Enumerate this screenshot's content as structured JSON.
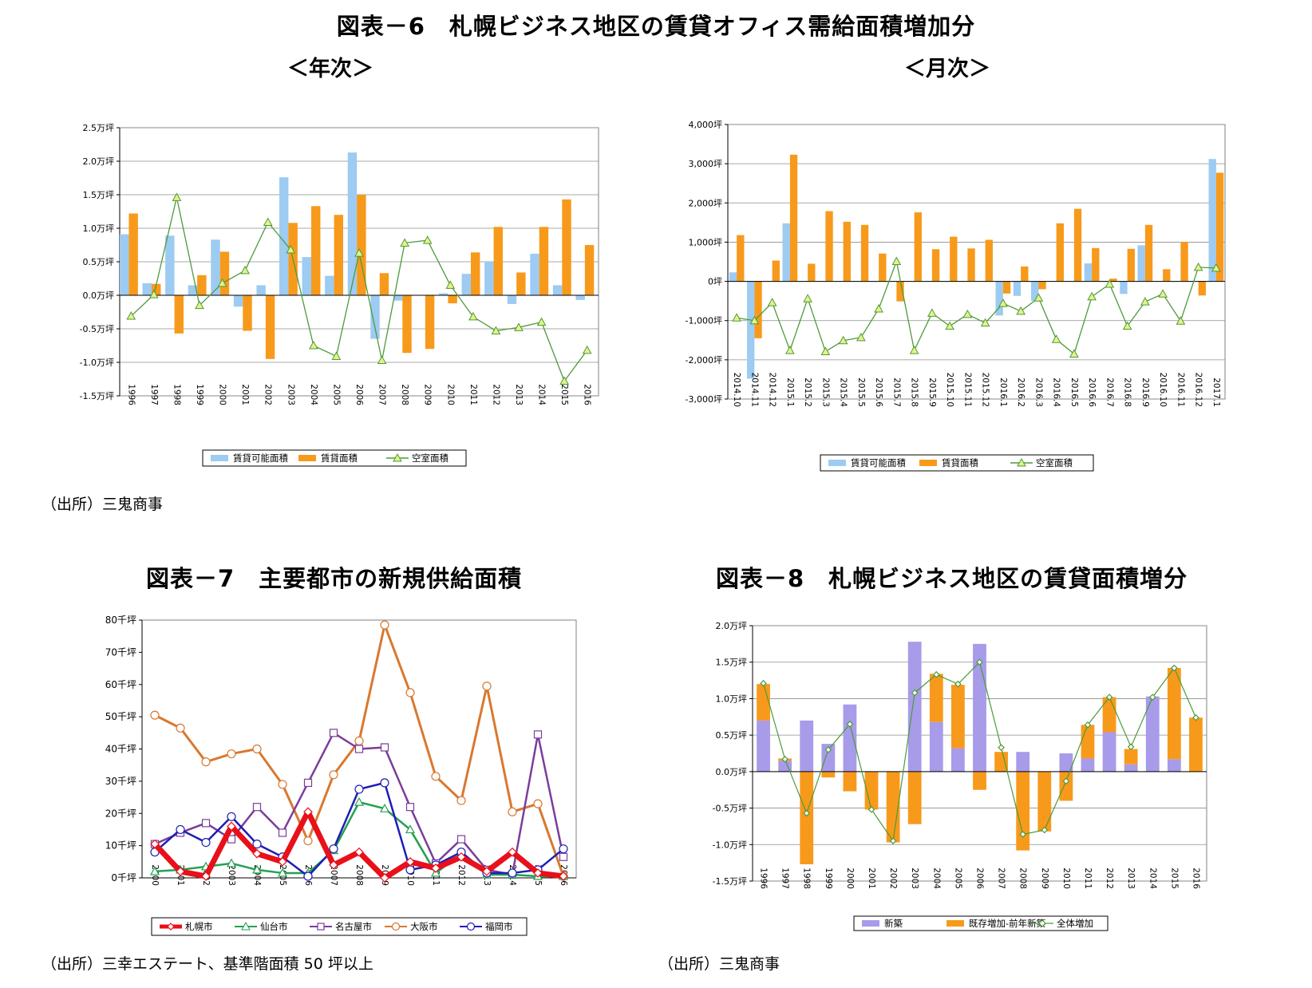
{
  "titles": {
    "fig6": "図表－6　札幌ビジネス地区の賃貸オフィス需給面積増加分",
    "fig6_annual": "＜年次＞",
    "fig6_monthly": "＜月次＞",
    "fig7": "図表－7　主要都市の新規供給面積",
    "fig8": "図表－8　札幌ビジネス地区の賃貸面積増分"
  },
  "sources": {
    "fig6": "（出所）三鬼商事",
    "fig7": "（出所）三幸エステート、基準階面積 50 坪以上",
    "fig8": "（出所）三鬼商事"
  },
  "colors": {
    "light_blue": "#9DCBF1",
    "orange": "#F79A1B",
    "green_line": "#4E9A3A",
    "triangle_fill": "#E4F28A",
    "purple_bar": "#A79BEA",
    "sapporo": "#E8101A",
    "sendai": "#25A052",
    "nagoya": "#7A3D9C",
    "osaka": "#D9782F",
    "fukuoka": "#1E1EB4"
  },
  "chart_data": [
    {
      "id": "annual",
      "type": "bar",
      "categories": [
        "1996",
        "1997",
        "1998",
        "1999",
        "2000",
        "2001",
        "2002",
        "2003",
        "2004",
        "2005",
        "2006",
        "2007",
        "2008",
        "2009",
        "2010",
        "2011",
        "2012",
        "2013",
        "2014",
        "2015",
        "2016"
      ],
      "ylim": [
        -1.5,
        2.5
      ],
      "yticks": [
        2.5,
        2.0,
        1.5,
        1.0,
        0.5,
        0.0,
        -0.5,
        -1.0,
        -1.5
      ],
      "ytick_labels": [
        "2.5万坪",
        "2.0万坪",
        "1.5万坪",
        "1.0万坪",
        "0.5万坪",
        "0.0万坪",
        "-0.5万坪",
        "-1.0万坪",
        "-1.5万坪"
      ],
      "grid": true,
      "legend": "bottom",
      "series": [
        {
          "name": "賃貸可能面積",
          "kind": "bar",
          "values": [
            0.91,
            0.18,
            0.89,
            0.15,
            0.83,
            -0.17,
            0.15,
            1.76,
            0.57,
            0.29,
            2.13,
            -0.65,
            -0.08,
            0.0,
            0.03,
            0.32,
            0.5,
            -0.13,
            0.62,
            0.15,
            -0.07
          ]
        },
        {
          "name": "賃貸面積",
          "kind": "bar",
          "values": [
            1.22,
            0.17,
            -0.57,
            0.3,
            0.65,
            -0.53,
            -0.95,
            1.08,
            1.33,
            1.2,
            1.5,
            0.33,
            -0.86,
            -0.8,
            -0.12,
            0.64,
            1.02,
            0.34,
            1.02,
            1.43,
            0.75
          ]
        },
        {
          "name": "空室面積",
          "kind": "line",
          "values": [
            -0.31,
            0.01,
            1.46,
            -0.15,
            0.18,
            0.37,
            1.09,
            0.68,
            -0.75,
            -0.91,
            0.63,
            -0.97,
            0.78,
            0.82,
            0.15,
            -0.32,
            -0.53,
            -0.48,
            -0.4,
            -1.28,
            -0.82
          ]
        }
      ]
    },
    {
      "id": "monthly",
      "type": "bar",
      "categories": [
        "2014.10",
        "2014.11",
        "2014.12",
        "2015.1",
        "2015.2",
        "2015.3",
        "2015.4",
        "2015.5",
        "2015.6",
        "2015.7",
        "2015.8",
        "2015.9",
        "2015.10",
        "2015.11",
        "2015.12",
        "2016.1",
        "2016.2",
        "2016.3",
        "2016.4",
        "2016.5",
        "2016.6",
        "2016.7",
        "2016.8",
        "2016.9",
        "2016.10",
        "2016.11",
        "2016.12",
        "2017.1"
      ],
      "ylim": [
        -3000,
        4000
      ],
      "yticks": [
        4000,
        3000,
        2000,
        1000,
        0,
        -1000,
        -2000,
        -3000
      ],
      "ytick_labels": [
        "4,000坪",
        "3,000坪",
        "2,000坪",
        "1,000坪",
        "0坪",
        "-1,000坪",
        "-2,000坪",
        "-3,000坪"
      ],
      "grid": true,
      "legend": "bottom",
      "series": [
        {
          "name": "賃貸可能面積",
          "kind": "bar",
          "values": [
            230,
            -2480,
            0,
            1480,
            0,
            0,
            0,
            0,
            0,
            0,
            0,
            0,
            0,
            0,
            0,
            -870,
            -370,
            -500,
            0,
            0,
            460,
            0,
            -320,
            920,
            0,
            0,
            0,
            3120
          ]
        },
        {
          "name": "賃貸面積",
          "kind": "bar",
          "values": [
            1180,
            -1450,
            530,
            3230,
            450,
            1790,
            1520,
            1440,
            710,
            -510,
            1760,
            820,
            1140,
            840,
            1060,
            -310,
            380,
            -200,
            1480,
            1850,
            850,
            70,
            830,
            1440,
            310,
            1010,
            -360,
            2770
          ]
        },
        {
          "name": "空室面積",
          "kind": "line",
          "values": [
            -930,
            -1000,
            -540,
            -1760,
            -440,
            -1790,
            -1510,
            -1430,
            -700,
            510,
            -1760,
            -810,
            -1140,
            -840,
            -1060,
            -560,
            -760,
            -420,
            -1480,
            -1850,
            -390,
            -70,
            -1140,
            -520,
            -320,
            -1010,
            360,
            340
          ]
        }
      ]
    },
    {
      "id": "supply",
      "type": "line",
      "categories": [
        "2000",
        "2001",
        "2002",
        "2003",
        "2004",
        "2005",
        "2006",
        "2007",
        "2008",
        "2009",
        "2010",
        "2011",
        "2012",
        "2013",
        "2014",
        "2015",
        "2016"
      ],
      "ylim": [
        0,
        80
      ],
      "yticks": [
        80,
        70,
        60,
        50,
        40,
        30,
        20,
        10,
        0
      ],
      "ytick_labels": [
        "80千坪",
        "70千坪",
        "60千坪",
        "50千坪",
        "40千坪",
        "30千坪",
        "20千坪",
        "10千坪",
        "0千坪"
      ],
      "grid": false,
      "legend": "bottom",
      "series": [
        {
          "name": "札幌市",
          "marker": "diamond",
          "values": [
            10.5,
            2.0,
            0.5,
            16.0,
            7.5,
            5.0,
            20.5,
            4.0,
            8.0,
            0.0,
            5.0,
            3.0,
            6.5,
            2.0,
            8.0,
            1.5,
            0.5
          ]
        },
        {
          "name": "仙台市",
          "marker": "triangle",
          "values": [
            2.0,
            2.5,
            3.5,
            4.5,
            2.5,
            1.5,
            1.5,
            8.5,
            23.5,
            21.5,
            15.0,
            1.5,
            7.5,
            1.0,
            1.0,
            0.5,
            0.5
          ]
        },
        {
          "name": "名古屋市",
          "marker": "square",
          "values": [
            10.5,
            14.0,
            17.0,
            12.0,
            22.0,
            14.0,
            29.5,
            45.0,
            40.0,
            40.5,
            22.0,
            4.5,
            12.0,
            2.5,
            1.0,
            44.5,
            6.5
          ]
        },
        {
          "name": "大阪市",
          "marker": "circle",
          "values": [
            50.5,
            46.5,
            36.0,
            38.5,
            40.0,
            29.0,
            11.5,
            32.0,
            42.5,
            78.5,
            57.5,
            31.5,
            24.0,
            59.5,
            20.5,
            23.0,
            0.5
          ]
        },
        {
          "name": "福岡市",
          "marker": "circle",
          "values": [
            8.0,
            15.0,
            11.0,
            19.0,
            10.5,
            6.5,
            0.5,
            9.0,
            27.5,
            29.5,
            2.5,
            4.0,
            8.0,
            1.5,
            1.5,
            2.5,
            9.0
          ]
        }
      ]
    },
    {
      "id": "rent_increase",
      "type": "bar",
      "stacked": true,
      "categories": [
        "1996",
        "1997",
        "1998",
        "1999",
        "2000",
        "2001",
        "2002",
        "2003",
        "2004",
        "2005",
        "2006",
        "2007",
        "2008",
        "2009",
        "2010",
        "2011",
        "2012",
        "2013",
        "2014",
        "2015",
        "2016"
      ],
      "ylim": [
        -1.5,
        2.0
      ],
      "yticks": [
        2.0,
        1.5,
        1.0,
        0.5,
        0.0,
        -0.5,
        -1.0,
        -1.5
      ],
      "ytick_labels": [
        "2.0万坪",
        "1.5万坪",
        "1.0万坪",
        "0.5万坪",
        "0.0万坪",
        "-0.5万坪",
        "-1.0万坪",
        "-1.5万坪"
      ],
      "grid": true,
      "legend": "bottom",
      "series": [
        {
          "name": "新築",
          "kind": "bar",
          "values": [
            0.7,
            0.15,
            0.7,
            0.38,
            0.92,
            0.0,
            0.0,
            1.78,
            0.68,
            0.32,
            1.75,
            0.0,
            0.27,
            0.0,
            0.25,
            0.18,
            0.54,
            0.1,
            1.03,
            0.17,
            0.0
          ]
        },
        {
          "name": "既存増加-前年新築",
          "kind": "bar",
          "values": [
            0.5,
            0.03,
            -1.27,
            -0.08,
            -0.27,
            -0.52,
            -0.97,
            -0.72,
            0.66,
            0.87,
            -0.25,
            0.27,
            -1.08,
            -0.82,
            -0.4,
            0.46,
            0.48,
            0.21,
            0.0,
            1.25,
            0.74
          ]
        },
        {
          "name": "全体増加",
          "kind": "line",
          "values": [
            1.21,
            0.17,
            -0.57,
            0.3,
            0.65,
            -0.52,
            -0.95,
            1.08,
            1.33,
            1.2,
            1.5,
            0.33,
            -0.86,
            -0.8,
            -0.13,
            0.64,
            1.02,
            0.34,
            1.02,
            1.42,
            0.74
          ]
        }
      ]
    }
  ]
}
